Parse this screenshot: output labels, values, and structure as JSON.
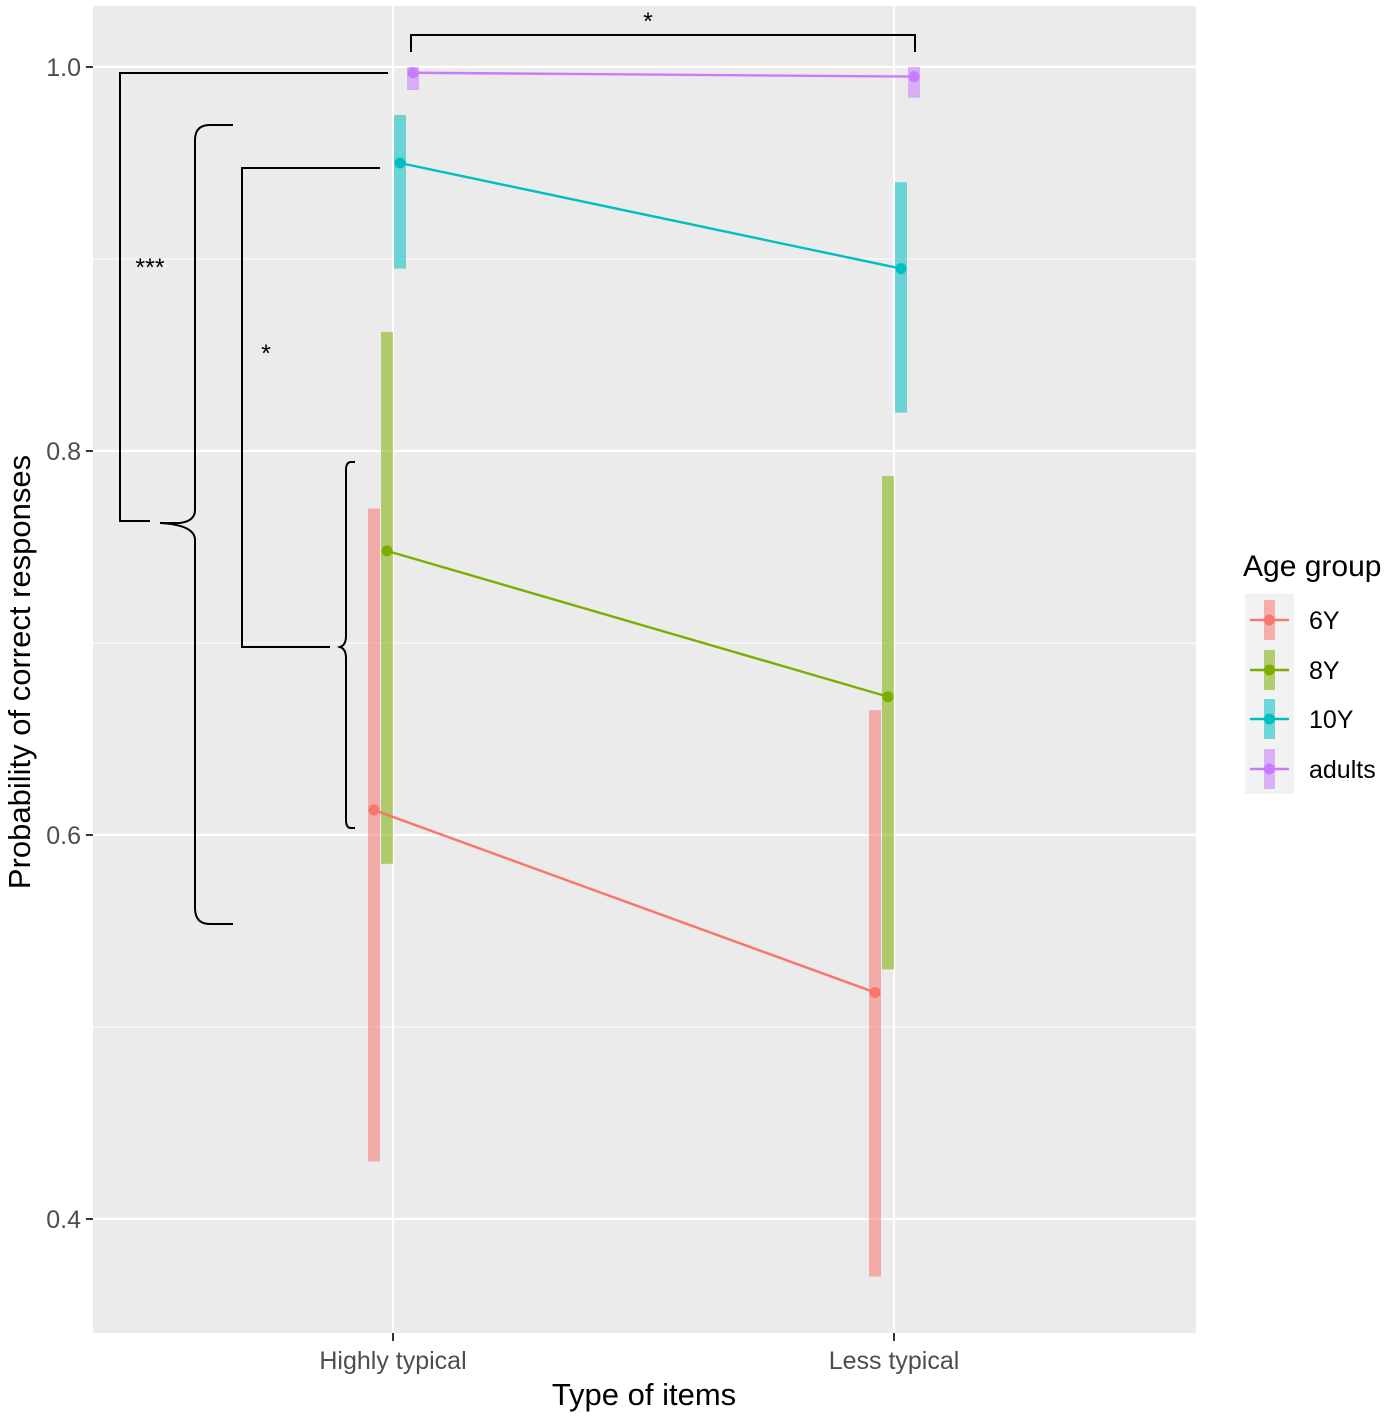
{
  "chart_data": {
    "type": "line",
    "title": "",
    "xlabel": "Type of items",
    "ylabel": "Probability of correct responses",
    "categories": [
      "Highly typical",
      "Less typical"
    ],
    "ylim": [
      0.34,
      1.03
    ],
    "y_ticks": [
      0.4,
      0.6,
      0.8,
      1.0
    ],
    "y_tick_labels": [
      "0.4",
      "0.6",
      "0.8",
      "1.0"
    ],
    "grid": true,
    "legend": {
      "title": "Age group",
      "position": "right"
    },
    "series": [
      {
        "name": "6Y",
        "color": "#F8766D",
        "values": [
          0.613,
          0.518
        ],
        "lower": [
          0.43,
          0.37
        ],
        "upper": [
          0.77,
          0.665
        ]
      },
      {
        "name": "8Y",
        "color": "#7CAE00",
        "values": [
          0.748,
          0.672
        ],
        "lower": [
          0.585,
          0.53
        ],
        "upper": [
          0.862,
          0.787
        ]
      },
      {
        "name": "10Y",
        "color": "#00BFC4",
        "values": [
          0.95,
          0.895
        ],
        "lower": [
          0.895,
          0.82
        ],
        "upper": [
          0.975,
          0.94
        ]
      },
      {
        "name": "adults",
        "color": "#C77CFF",
        "values": [
          0.997,
          0.995
        ],
        "lower": [
          0.988,
          0.984
        ],
        "upper": [
          1.0,
          1.0
        ]
      }
    ],
    "annotations": [
      {
        "label": "*",
        "meaning": "adults: Highly typical vs Less typical"
      },
      {
        "label": "***",
        "meaning": "adults vs children (Highly typical)"
      },
      {
        "label": "*",
        "meaning": "10Y vs 6Y/8Y (Highly typical)"
      }
    ]
  }
}
